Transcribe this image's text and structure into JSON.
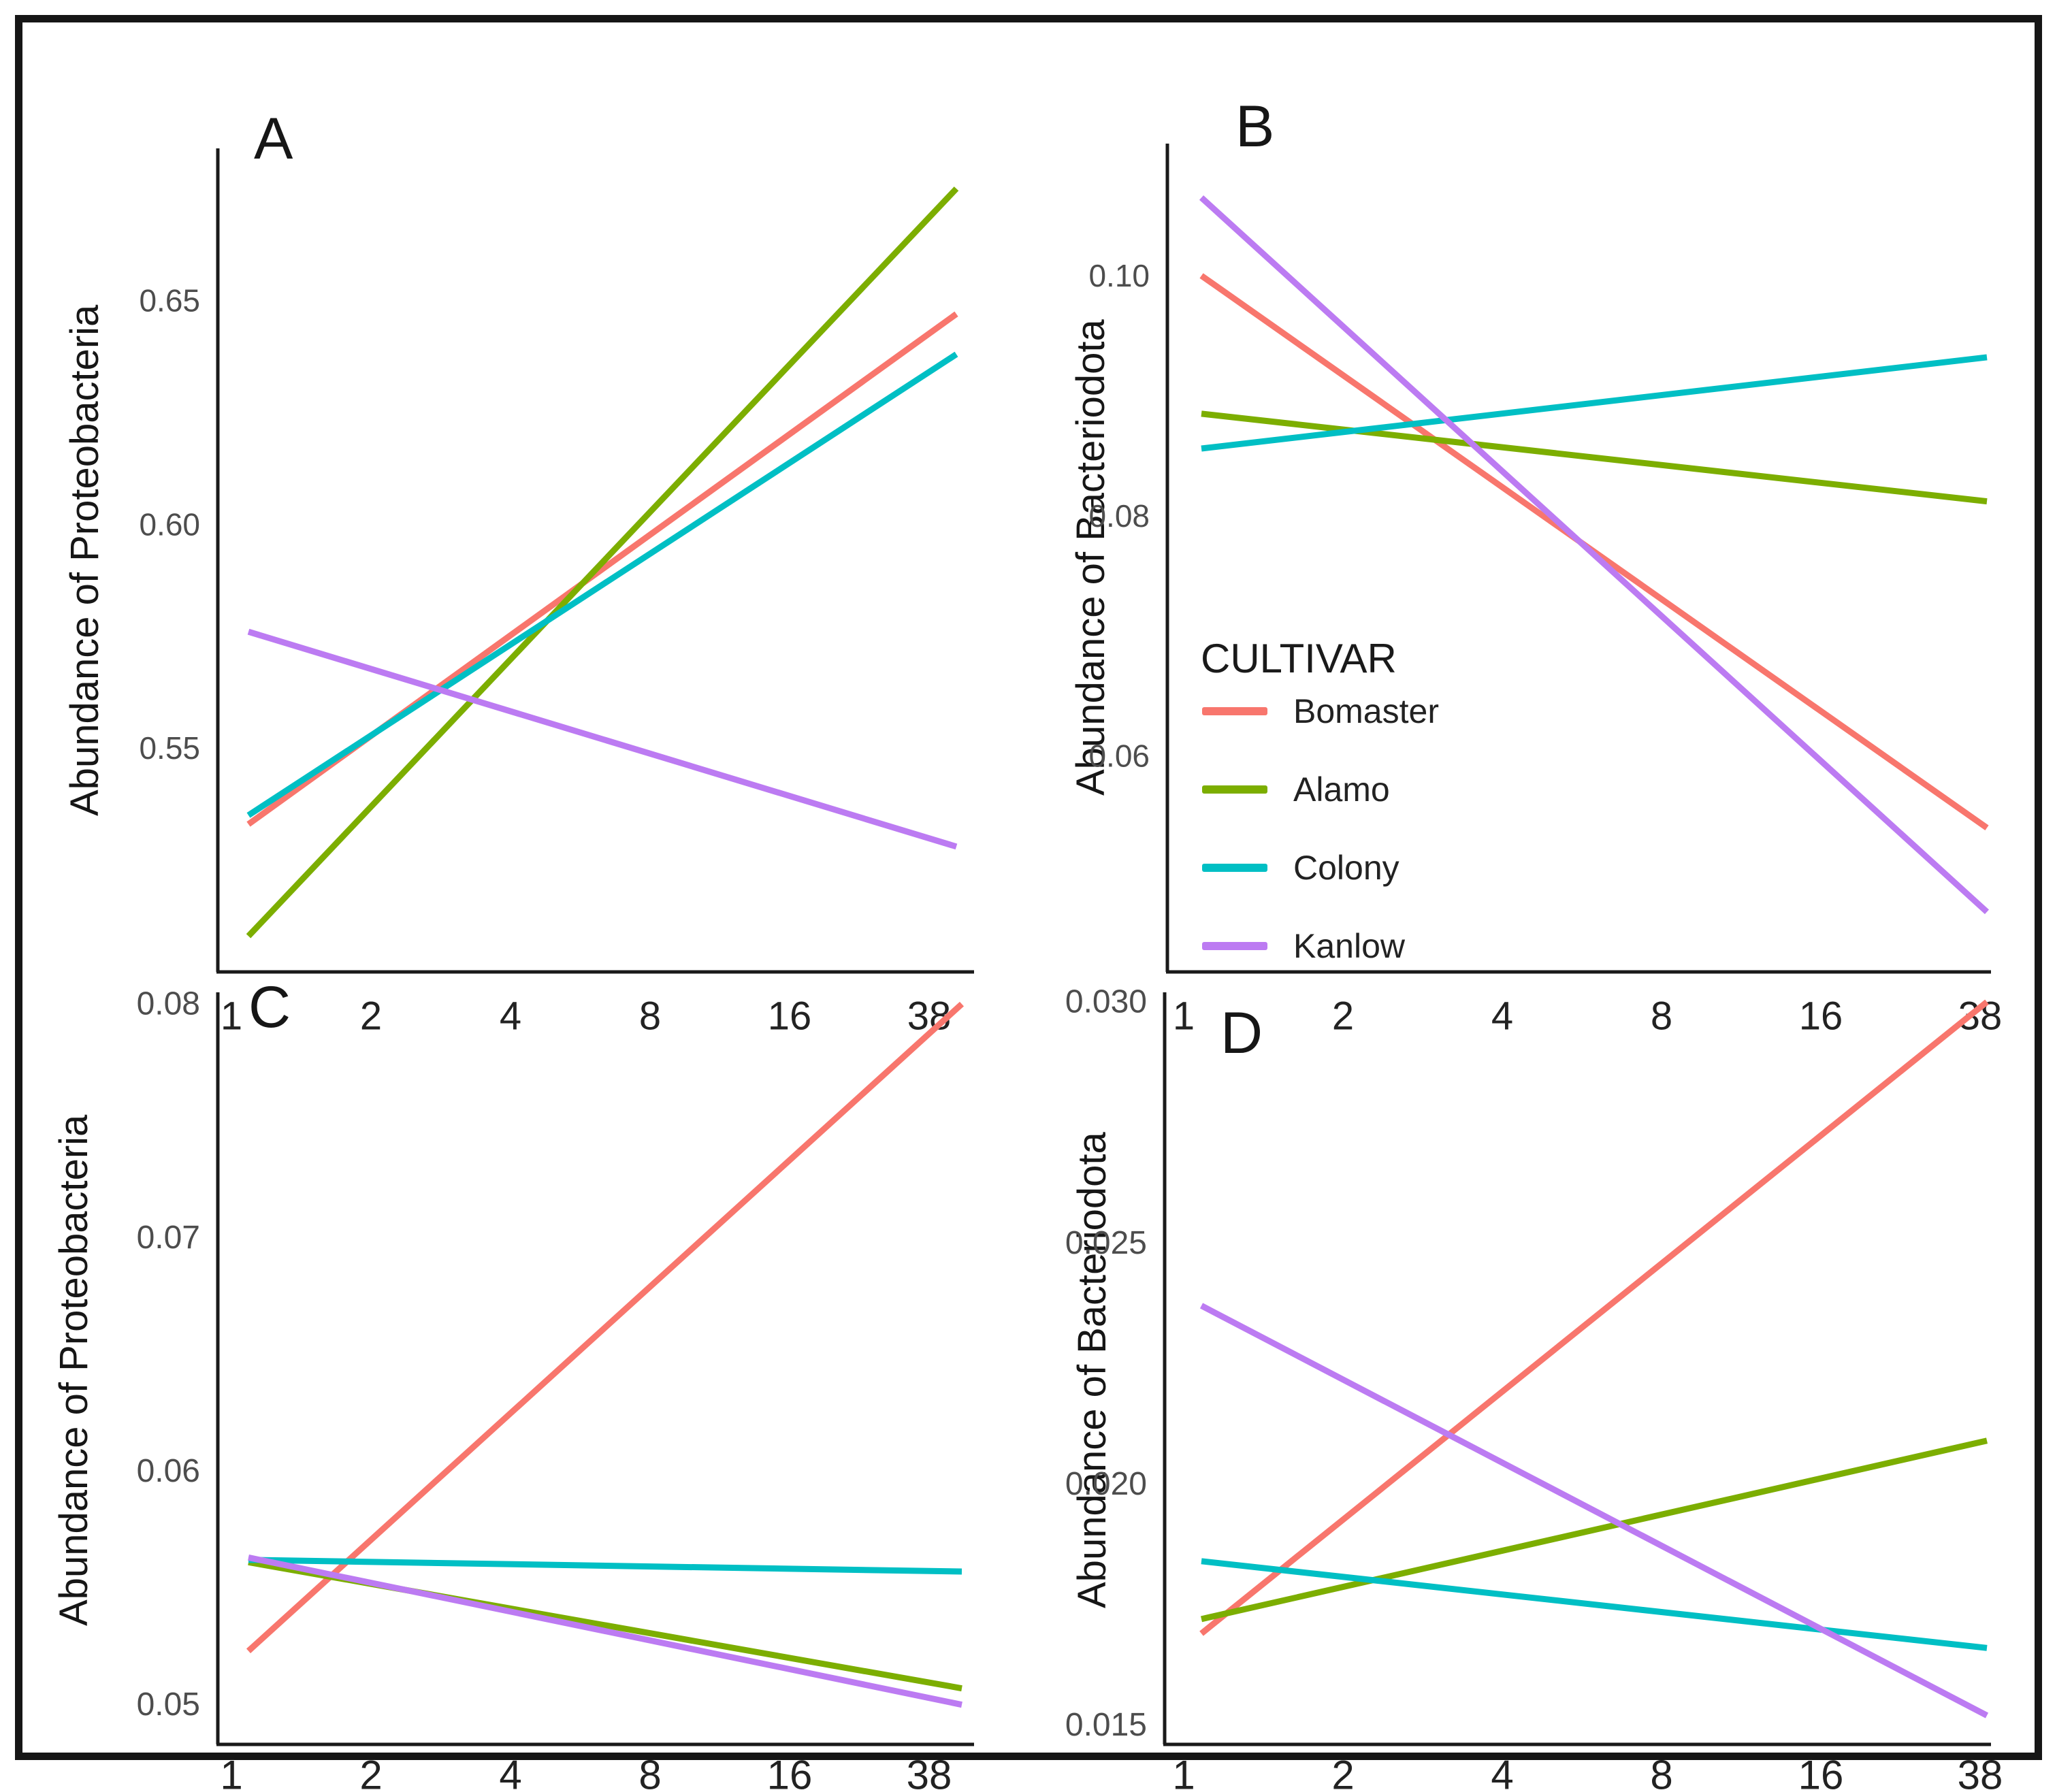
{
  "figure": {
    "background": "#ffffff",
    "border_color": "#161616",
    "axis_color": "#1a1a1a",
    "tick_label_color": "#4d4d4d",
    "x_tick_label_color": "#222222"
  },
  "legend": {
    "title": "CULTIVAR",
    "items": [
      {
        "label": "Bomaster",
        "color": "#F8766D"
      },
      {
        "label": "Alamo",
        "color": "#7CAE00"
      },
      {
        "label": "Colony",
        "color": "#00BFC4"
      },
      {
        "label": "Kanlow",
        "color": "#BC7BF2"
      }
    ]
  },
  "chart_data": [
    {
      "panel_label": "A",
      "type": "line",
      "ylabel": "Abundance of Proteobacteria",
      "xlabel": "",
      "x_scale": "log2",
      "x_ticks": [
        "1",
        "2",
        "4",
        "8",
        "16",
        "38"
      ],
      "x_line_span": [
        1.15,
        45
      ],
      "ylim": [
        0.5,
        0.684
      ],
      "grid": false,
      "y_ticks": [
        {
          "v": 0.55,
          "label": "0.55"
        },
        {
          "v": 0.6,
          "label": "0.60"
        },
        {
          "v": 0.65,
          "label": "0.65"
        }
      ],
      "series": [
        {
          "name": "Bomaster",
          "color": "#F8766D",
          "start": 0.533,
          "end": 0.647
        },
        {
          "name": "Alamo",
          "color": "#7CAE00",
          "start": 0.508,
          "end": 0.675
        },
        {
          "name": "Colony",
          "color": "#00BFC4",
          "start": 0.535,
          "end": 0.638
        },
        {
          "name": "Kanlow",
          "color": "#BC7BF2",
          "start": 0.576,
          "end": 0.528
        }
      ]
    },
    {
      "panel_label": "B",
      "type": "line",
      "ylabel": "Abundance of Bacteriodota",
      "xlabel": "",
      "x_scale": "log2",
      "x_ticks": [
        "1",
        "2",
        "4",
        "8",
        "16",
        "38"
      ],
      "x_line_span": [
        1.15,
        45
      ],
      "ylim": [
        0.042,
        0.111
      ],
      "grid": false,
      "y_ticks": [
        {
          "v": 0.06,
          "label": "0.06"
        },
        {
          "v": 0.08,
          "label": "0.08"
        },
        {
          "v": 0.1,
          "label": "0.10"
        }
      ],
      "series": [
        {
          "name": "Bomaster",
          "color": "#F8766D",
          "start": 0.1,
          "end": 0.054
        },
        {
          "name": "Alamo",
          "color": "#7CAE00",
          "start": 0.0885,
          "end": 0.0812
        },
        {
          "name": "Colony",
          "color": "#00BFC4",
          "start": 0.0856,
          "end": 0.0932
        },
        {
          "name": "Kanlow",
          "color": "#BC7BF2",
          "start": 0.1065,
          "end": 0.047
        }
      ]
    },
    {
      "panel_label": "C",
      "type": "line",
      "ylabel": "Abundance of Proteobacteria",
      "xlabel": "",
      "x_scale": "log2",
      "x_ticks": [
        "1",
        "2",
        "4",
        "8",
        "16",
        "38"
      ],
      "x_line_span": [
        1.15,
        45
      ],
      "ylim": [
        0.0483,
        0.0805
      ],
      "grid": false,
      "y_ticks": [
        {
          "v": 0.05,
          "label": "0.05"
        },
        {
          "v": 0.06,
          "label": "0.06"
        },
        {
          "v": 0.07,
          "label": "0.07"
        },
        {
          "v": 0.08,
          "label": "0.08"
        }
      ],
      "series": [
        {
          "name": "Bomaster",
          "color": "#F8766D",
          "start": 0.0523,
          "end": 0.08
        },
        {
          "name": "Alamo",
          "color": "#7CAE00",
          "start": 0.0561,
          "end": 0.0507
        },
        {
          "name": "Colony",
          "color": "#00BFC4",
          "start": 0.0562,
          "end": 0.0557
        },
        {
          "name": "Kanlow",
          "color": "#BC7BF2",
          "start": 0.0563,
          "end": 0.05
        }
      ]
    },
    {
      "panel_label": "D",
      "type": "line",
      "ylabel": "Abundance of Bacteriodota",
      "xlabel": "",
      "x_scale": "log2",
      "x_ticks": [
        "1",
        "2",
        "4",
        "8",
        "16",
        "38"
      ],
      "x_line_span": [
        1.15,
        45
      ],
      "ylim": [
        0.0146,
        0.0302
      ],
      "grid": false,
      "y_ticks": [
        {
          "v": 0.015,
          "label": "0.015"
        },
        {
          "v": 0.02,
          "label": "0.020"
        },
        {
          "v": 0.025,
          "label": "0.025"
        },
        {
          "v": 0.03,
          "label": "0.030"
        }
      ],
      "series": [
        {
          "name": "Bomaster",
          "color": "#F8766D",
          "start": 0.0169,
          "end": 0.03
        },
        {
          "name": "Alamo",
          "color": "#7CAE00",
          "start": 0.0172,
          "end": 0.0209
        },
        {
          "name": "Colony",
          "color": "#00BFC4",
          "start": 0.0184,
          "end": 0.0166
        },
        {
          "name": "Kanlow",
          "color": "#BC7BF2",
          "start": 0.0237,
          "end": 0.0152
        }
      ]
    }
  ]
}
